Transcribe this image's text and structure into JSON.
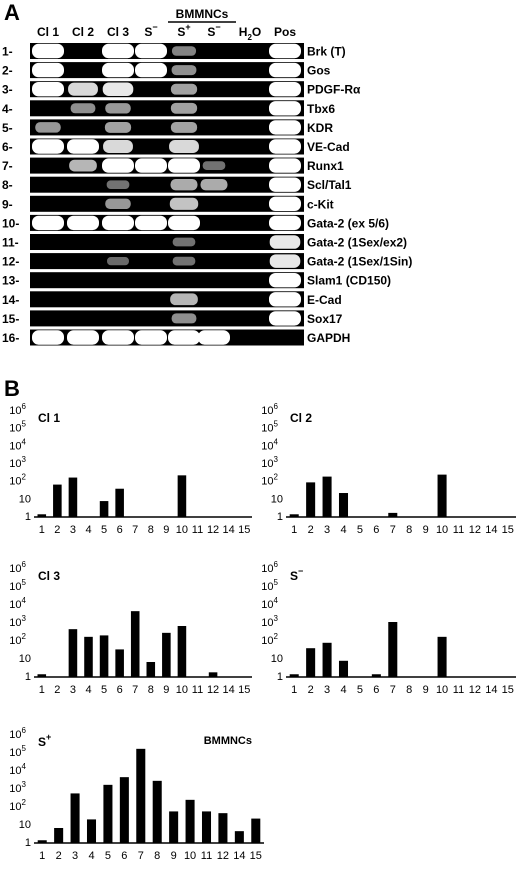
{
  "panel_a": {
    "letter": "A",
    "bmmncs_label": "BMMNCs",
    "columns": [
      {
        "base": "Cl 1",
        "sup": "",
        "sub": ""
      },
      {
        "base": "Cl 2",
        "sup": "",
        "sub": ""
      },
      {
        "base": "Cl 3",
        "sup": "",
        "sub": ""
      },
      {
        "base": "S",
        "sup": "−",
        "sub": ""
      },
      {
        "base": "S",
        "sup": "+",
        "sub": ""
      },
      {
        "base": "S",
        "sup": "−",
        "sub": ""
      },
      {
        "base": "H",
        "sup": "",
        "sub": "2",
        "tail": "O"
      },
      {
        "base": "Pos",
        "sup": "",
        "sub": ""
      }
    ],
    "rows": [
      {
        "number": "1-",
        "gene": "Brk (T)",
        "bands": [
          1.0,
          0,
          1.0,
          1.0,
          0.45,
          0,
          0,
          1.0
        ]
      },
      {
        "number": "2-",
        "gene": "Gos",
        "bands": [
          1.0,
          0,
          1.0,
          1.0,
          0.5,
          0,
          0,
          1.0
        ]
      },
      {
        "number": "3-",
        "gene": "PDGF-Rα",
        "bands": [
          1.0,
          0.85,
          0.9,
          0,
          0.6,
          0,
          0,
          1.0
        ]
      },
      {
        "number": "4-",
        "gene": "Tbx6",
        "bands": [
          0,
          0.5,
          0.55,
          0,
          0.6,
          0,
          0,
          1.0
        ]
      },
      {
        "number": "5-",
        "gene": "KDR",
        "bands": [
          0.55,
          0,
          0.6,
          0,
          0.6,
          0,
          0,
          1.0
        ]
      },
      {
        "number": "6-",
        "gene": "VE-Cad",
        "bands": [
          1.0,
          1.0,
          0.85,
          0,
          0.85,
          0,
          0,
          1.0
        ]
      },
      {
        "number": "7-",
        "gene": "Runx1",
        "bands": [
          0,
          0.7,
          1.0,
          1.0,
          1.0,
          0.35,
          0,
          1.0
        ]
      },
      {
        "number": "8-",
        "gene": "Scl/Tal1",
        "bands": [
          0,
          0,
          0.35,
          0,
          0.65,
          0.65,
          0,
          1.0
        ]
      },
      {
        "number": "9-",
        "gene": "c-Kit",
        "bands": [
          0,
          0,
          0.55,
          0,
          0.75,
          0,
          0,
          1.0
        ]
      },
      {
        "number": "10-",
        "gene": "Gata-2 (ex 5/6)",
        "bands": [
          1.0,
          1.0,
          1.0,
          1.0,
          1.0,
          0,
          0,
          1.0
        ]
      },
      {
        "number": "11-",
        "gene": "Gata-2 (1Sex/ex2)",
        "bands": [
          0,
          0,
          0,
          0,
          0.35,
          0,
          0,
          0.9
        ]
      },
      {
        "number": "12-",
        "gene": "Gata-2 (1Sex/1Sin)",
        "bands": [
          0,
          0,
          0.3,
          0,
          0.35,
          0,
          0,
          0.9
        ]
      },
      {
        "number": "13-",
        "gene": "Slam1 (CD150)",
        "bands": [
          0,
          0,
          0,
          0,
          0,
          0,
          0,
          1.0
        ]
      },
      {
        "number": "14-",
        "gene": "E-Cad",
        "bands": [
          0,
          0,
          0,
          0,
          0.7,
          0,
          0,
          1.0
        ]
      },
      {
        "number": "15-",
        "gene": "Sox17",
        "bands": [
          0,
          0,
          0,
          0,
          0.5,
          0,
          0,
          1.0
        ]
      },
      {
        "number": "16-",
        "gene": "GAPDH",
        "bands": [
          1.0,
          1.0,
          1.0,
          1.0,
          1.0,
          1.0,
          0,
          0
        ]
      }
    ]
  },
  "panel_b": {
    "letter": "B",
    "bmmncs_label": "BMMNCs"
  },
  "chart_data": [
    {
      "type": "bar",
      "title": "Cl 1",
      "title_sup": "",
      "scale": "log",
      "ylim": [
        1,
        1000000
      ],
      "ytick_labels": [
        "1",
        "10",
        "10",
        "10",
        "10",
        "10",
        "10"
      ],
      "ytick_sups": [
        "",
        "",
        "2",
        "3",
        "4",
        "5",
        "6"
      ],
      "categories": [
        "1",
        "2",
        "3",
        "4",
        "5",
        "6",
        "7",
        "8",
        "9",
        "10",
        "11",
        "12",
        "14",
        "15"
      ],
      "values": [
        1,
        60,
        150,
        null,
        7,
        35,
        null,
        null,
        null,
        200,
        null,
        null,
        null,
        null
      ]
    },
    {
      "type": "bar",
      "title": "Cl 2",
      "title_sup": "",
      "scale": "log",
      "ylim": [
        1,
        1000000
      ],
      "ytick_labels": [
        "1",
        "10",
        "10",
        "10",
        "10",
        "10",
        "10"
      ],
      "ytick_sups": [
        "",
        "",
        "2",
        "3",
        "4",
        "5",
        "6"
      ],
      "categories": [
        "1",
        "2",
        "3",
        "4",
        "5",
        "6",
        "7",
        "8",
        "9",
        "10",
        "11",
        "12",
        "14",
        "15"
      ],
      "values": [
        1,
        80,
        170,
        20,
        null,
        null,
        1.5,
        null,
        null,
        220,
        null,
        null,
        null,
        null
      ]
    },
    {
      "type": "bar",
      "title": "Cl 3",
      "title_sup": "",
      "scale": "log",
      "ylim": [
        1,
        1000000
      ],
      "ytick_labels": [
        "1",
        "10",
        "10",
        "10",
        "10",
        "10",
        "10"
      ],
      "ytick_sups": [
        "",
        "",
        "2",
        "3",
        "4",
        "5",
        "6"
      ],
      "categories": [
        "1",
        "2",
        "3",
        "4",
        "5",
        "6",
        "7",
        "8",
        "9",
        "10",
        "11",
        "12",
        "14",
        "15"
      ],
      "values": [
        1,
        null,
        400,
        150,
        180,
        30,
        4000,
        6,
        250,
        600,
        null,
        1.6,
        null,
        null
      ]
    },
    {
      "type": "bar",
      "title": "S",
      "title_sup": "−",
      "scale": "log",
      "ylim": [
        1,
        1000000
      ],
      "ytick_labels": [
        "1",
        "10",
        "10",
        "10",
        "10",
        "10",
        "10"
      ],
      "ytick_sups": [
        "",
        "",
        "2",
        "3",
        "4",
        "5",
        "6"
      ],
      "categories": [
        "1",
        "2",
        "3",
        "4",
        "5",
        "6",
        "7",
        "8",
        "9",
        "10",
        "11",
        "12",
        "14",
        "15"
      ],
      "values": [
        1,
        35,
        70,
        7,
        null,
        1,
        1000,
        null,
        null,
        150,
        null,
        null,
        null,
        null
      ]
    },
    {
      "type": "bar",
      "title": "S",
      "title_sup": "+",
      "scale": "log",
      "ylim": [
        1,
        1000000
      ],
      "ytick_labels": [
        "1",
        "10",
        "10",
        "10",
        "10",
        "10",
        "10"
      ],
      "ytick_sups": [
        "",
        "",
        "2",
        "3",
        "4",
        "5",
        "6"
      ],
      "categories": [
        "1",
        "2",
        "3",
        "4",
        "5",
        "6",
        "7",
        "8",
        "9",
        "10",
        "11",
        "12",
        "14",
        "15"
      ],
      "values": [
        1,
        6,
        500,
        18,
        1500,
        4000,
        150000,
        2500,
        50,
        220,
        50,
        40,
        4,
        20
      ]
    }
  ]
}
